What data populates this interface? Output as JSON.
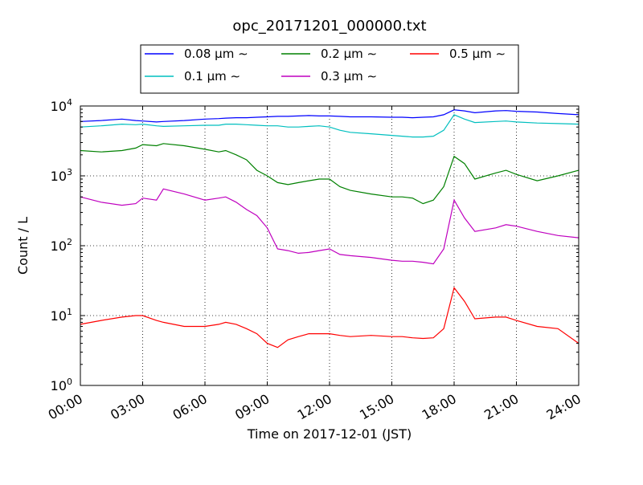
{
  "chart_data": {
    "type": "line",
    "title": "opc_20171201_000000.txt",
    "xlabel": "Time on 2017-12-01 (JST)",
    "ylabel": "Count / L",
    "yscale": "log",
    "xlim": [
      "00:00",
      "24:00"
    ],
    "ylim": [
      1,
      10000
    ],
    "grid": true,
    "legend_position": "top-center",
    "x_ticks": [
      "00:00",
      "03:00",
      "06:00",
      "09:00",
      "12:00",
      "15:00",
      "18:00",
      "21:00",
      "24:00"
    ],
    "y_ticks": [
      {
        "base": "10",
        "exp": "0",
        "value": 1
      },
      {
        "base": "10",
        "exp": "1",
        "value": 10
      },
      {
        "base": "10",
        "exp": "2",
        "value": 100
      },
      {
        "base": "10",
        "exp": "3",
        "value": 1000
      },
      {
        "base": "10",
        "exp": "4",
        "value": 10000
      }
    ],
    "legend": [
      {
        "label": "0.08 μm ∼",
        "color": "#0000ff"
      },
      {
        "label": "0.2 μm ∼",
        "color": "#008000"
      },
      {
        "label": "0.5 μm ∼",
        "color": "#ff0000"
      },
      {
        "label": "0.1 μm ∼",
        "color": "#00bfbf"
      },
      {
        "label": "0.3 μm ∼",
        "color": "#bf00bf"
      }
    ],
    "x": [
      "00:00",
      "01:00",
      "02:00",
      "02:40",
      "03:00",
      "03:40",
      "04:00",
      "05:00",
      "06:00",
      "06:40",
      "07:00",
      "07:30",
      "08:00",
      "08:30",
      "09:00",
      "09:30",
      "10:00",
      "10:30",
      "11:00",
      "11:30",
      "12:00",
      "12:30",
      "13:00",
      "14:00",
      "15:00",
      "15:30",
      "16:00",
      "16:30",
      "17:00",
      "17:30",
      "18:00",
      "18:30",
      "19:00",
      "20:00",
      "20:30",
      "21:00",
      "22:00",
      "23:00",
      "24:00"
    ],
    "series": [
      {
        "name": "0.08 μm ∼",
        "color": "#0000ff",
        "values": [
          6000,
          6200,
          6500,
          6200,
          6100,
          5900,
          6000,
          6200,
          6500,
          6600,
          6700,
          6800,
          6800,
          6900,
          7000,
          7100,
          7100,
          7200,
          7300,
          7200,
          7200,
          7100,
          7000,
          7000,
          6900,
          6900,
          6800,
          6900,
          7000,
          7500,
          8800,
          8500,
          8000,
          8500,
          8600,
          8400,
          8200,
          7800,
          7500
        ]
      },
      {
        "name": "0.1 μm ∼",
        "color": "#00bfbf",
        "values": [
          5000,
          5200,
          5500,
          5400,
          5500,
          5200,
          5100,
          5200,
          5300,
          5300,
          5500,
          5500,
          5400,
          5300,
          5200,
          5200,
          5000,
          5000,
          5100,
          5200,
          5000,
          4500,
          4200,
          4000,
          3800,
          3700,
          3600,
          3600,
          3700,
          4500,
          7500,
          6500,
          5800,
          6000,
          6100,
          5900,
          5700,
          5600,
          5500
        ]
      },
      {
        "name": "0.2 μm ∼",
        "color": "#008000",
        "values": [
          2300,
          2200,
          2300,
          2500,
          2800,
          2700,
          2900,
          2700,
          2400,
          2200,
          2300,
          2000,
          1700,
          1200,
          1000,
          800,
          750,
          800,
          850,
          900,
          900,
          700,
          620,
          550,
          500,
          500,
          480,
          400,
          450,
          700,
          1900,
          1500,
          900,
          1100,
          1200,
          1050,
          850,
          1000,
          1200
        ]
      },
      {
        "name": "0.3 μm ∼",
        "color": "#bf00bf",
        "values": [
          500,
          420,
          380,
          400,
          480,
          450,
          650,
          550,
          450,
          480,
          500,
          420,
          330,
          270,
          180,
          90,
          85,
          78,
          80,
          85,
          90,
          75,
          72,
          68,
          62,
          60,
          60,
          58,
          55,
          90,
          450,
          250,
          160,
          180,
          200,
          190,
          160,
          140,
          130
        ]
      },
      {
        "name": "0.5 μm ∼",
        "color": "#ff0000",
        "values": [
          7.5,
          8.5,
          9.5,
          10,
          10,
          8.5,
          8,
          7,
          7,
          7.5,
          8,
          7.5,
          6.5,
          5.5,
          4,
          3.5,
          4.5,
          5,
          5.5,
          5.5,
          5.5,
          5.2,
          5,
          5.2,
          5,
          5,
          4.8,
          4.7,
          4.8,
          6.5,
          25,
          16,
          9,
          9.5,
          9.5,
          8.5,
          7,
          6.5,
          4
        ]
      }
    ]
  }
}
